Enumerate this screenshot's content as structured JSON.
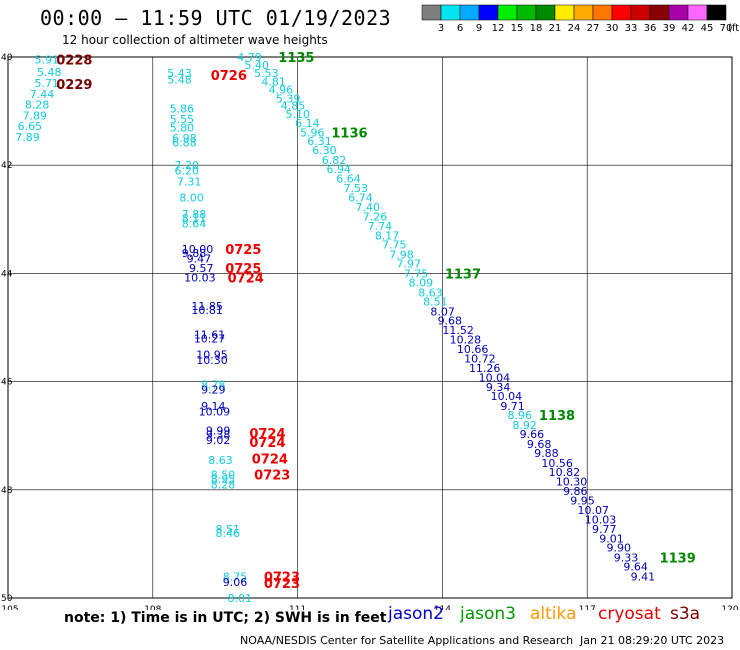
{
  "header": {
    "title": "00:00 – 11:59 UTC 01/19/2023",
    "subtitle": "12 hour collection of altimeter wave heights"
  },
  "colorbar": {
    "unit": "(ft)",
    "entries": [
      {
        "label": "3",
        "color": "#7f7f7f"
      },
      {
        "label": "6",
        "color": "#00e5ee"
      },
      {
        "label": "9",
        "color": "#00aaff"
      },
      {
        "label": "12",
        "color": "#0000ff"
      },
      {
        "label": "15",
        "color": "#00ee00"
      },
      {
        "label": "18",
        "color": "#00bb00"
      },
      {
        "label": "21",
        "color": "#008800"
      },
      {
        "label": "24",
        "color": "#ffee00"
      },
      {
        "label": "27",
        "color": "#ffaa00"
      },
      {
        "label": "30",
        "color": "#ff7700"
      },
      {
        "label": "33",
        "color": "#ff0000"
      },
      {
        "label": "36",
        "color": "#cc0000"
      },
      {
        "label": "39",
        "color": "#880000"
      },
      {
        "label": "42",
        "color": "#aa00aa"
      },
      {
        "label": "45",
        "color": "#ff66ff"
      },
      {
        "label": "70",
        "color": "#000000"
      }
    ]
  },
  "axes": {
    "x_ticks": [
      "105",
      "108",
      "111",
      "114",
      "117",
      "120"
    ],
    "y_ticks": [
      "40",
      "42",
      "44",
      "46",
      "48",
      "50"
    ],
    "lon_range": [
      105,
      120
    ],
    "lat_range": [
      40,
      50
    ]
  },
  "colors": {
    "cyan": "#11ccdd",
    "blue": "#0000bb",
    "green": "#008800",
    "red": "#ee0000",
    "darkred": "#770000"
  },
  "points": [
    {
      "t": "5.91",
      "lon": 105.55,
      "lat": 40.05,
      "c": "cyan"
    },
    {
      "t": "5.48",
      "lon": 105.6,
      "lat": 40.28,
      "c": "cyan"
    },
    {
      "t": "5.71",
      "lon": 105.55,
      "lat": 40.48,
      "c": "cyan"
    },
    {
      "t": "7.44",
      "lon": 105.45,
      "lat": 40.68,
      "c": "cyan"
    },
    {
      "t": "8.28",
      "lon": 105.35,
      "lat": 40.88,
      "c": "cyan"
    },
    {
      "t": "7.89",
      "lon": 105.3,
      "lat": 41.08,
      "c": "cyan"
    },
    {
      "t": "6.65",
      "lon": 105.2,
      "lat": 41.28,
      "c": "cyan"
    },
    {
      "t": "7.89",
      "lon": 105.15,
      "lat": 41.48,
      "c": "cyan"
    },
    {
      "t": "0228",
      "lon": 106.0,
      "lat": 40.05,
      "c": "darkred",
      "big": true
    },
    {
      "t": "0229",
      "lon": 106.0,
      "lat": 40.5,
      "c": "darkred",
      "big": true
    },
    {
      "t": "5.43",
      "lon": 108.3,
      "lat": 40.3,
      "c": "cyan"
    },
    {
      "t": "5.48",
      "lon": 108.3,
      "lat": 40.42,
      "c": "cyan"
    },
    {
      "t": "0726",
      "lon": 109.2,
      "lat": 40.33,
      "c": "red",
      "big": true
    },
    {
      "t": "5.86",
      "lon": 108.35,
      "lat": 40.95,
      "c": "cyan"
    },
    {
      "t": "5.55",
      "lon": 108.35,
      "lat": 41.15,
      "c": "cyan"
    },
    {
      "t": "5.80",
      "lon": 108.35,
      "lat": 41.3,
      "c": "cyan"
    },
    {
      "t": "6.98",
      "lon": 108.4,
      "lat": 41.5,
      "c": "cyan"
    },
    {
      "t": "6.88",
      "lon": 108.4,
      "lat": 41.58,
      "c": "cyan"
    },
    {
      "t": "7.20",
      "lon": 108.45,
      "lat": 42.0,
      "c": "cyan"
    },
    {
      "t": "6.20",
      "lon": 108.45,
      "lat": 42.1,
      "c": "cyan"
    },
    {
      "t": "7.31",
      "lon": 108.5,
      "lat": 42.3,
      "c": "cyan"
    },
    {
      "t": "8.00",
      "lon": 108.55,
      "lat": 42.6,
      "c": "cyan"
    },
    {
      "t": "7.88",
      "lon": 108.6,
      "lat": 42.9,
      "c": "cyan"
    },
    {
      "t": "8.11",
      "lon": 108.6,
      "lat": 42.98,
      "c": "cyan"
    },
    {
      "t": "8.64",
      "lon": 108.6,
      "lat": 43.08,
      "c": "cyan"
    },
    {
      "t": "10.00",
      "lon": 108.6,
      "lat": 43.55,
      "c": "blue"
    },
    {
      "t": "9.88",
      "lon": 108.6,
      "lat": 43.62,
      "c": "blue"
    },
    {
      "t": "9.47",
      "lon": 108.7,
      "lat": 43.72,
      "c": "blue"
    },
    {
      "t": "9.57",
      "lon": 108.75,
      "lat": 43.9,
      "c": "blue"
    },
    {
      "t": "10.03",
      "lon": 108.65,
      "lat": 44.08,
      "c": "blue"
    },
    {
      "t": "0725",
      "lon": 109.5,
      "lat": 43.55,
      "c": "red",
      "big": true
    },
    {
      "t": "0725",
      "lon": 109.5,
      "lat": 43.9,
      "c": "red",
      "big": true
    },
    {
      "t": "0724",
      "lon": 109.55,
      "lat": 44.08,
      "c": "red",
      "big": true
    },
    {
      "t": "11.85",
      "lon": 108.8,
      "lat": 44.6,
      "c": "blue"
    },
    {
      "t": "10.81",
      "lon": 108.8,
      "lat": 44.68,
      "c": "blue"
    },
    {
      "t": "11.61",
      "lon": 108.85,
      "lat": 45.13,
      "c": "blue"
    },
    {
      "t": "10.27",
      "lon": 108.85,
      "lat": 45.2,
      "c": "blue"
    },
    {
      "t": "10.95",
      "lon": 108.9,
      "lat": 45.5,
      "c": "blue"
    },
    {
      "t": "10.30",
      "lon": 108.9,
      "lat": 45.6,
      "c": "blue"
    },
    {
      "t": "8.78",
      "lon": 109.0,
      "lat": 46.05,
      "c": "cyan"
    },
    {
      "t": "9.29",
      "lon": 109.0,
      "lat": 46.15,
      "c": "blue"
    },
    {
      "t": "9.14",
      "lon": 109.0,
      "lat": 46.45,
      "c": "blue"
    },
    {
      "t": "10.09",
      "lon": 108.95,
      "lat": 46.55,
      "c": "blue"
    },
    {
      "t": "9.99",
      "lon": 109.1,
      "lat": 46.9,
      "c": "blue"
    },
    {
      "t": "9.38",
      "lon": 109.1,
      "lat": 46.98,
      "c": "blue"
    },
    {
      "t": "9.02",
      "lon": 109.1,
      "lat": 47.08,
      "c": "blue"
    },
    {
      "t": "0724",
      "lon": 110.0,
      "lat": 46.95,
      "c": "red",
      "big": true
    },
    {
      "t": "0724",
      "lon": 110.0,
      "lat": 47.12,
      "c": "red",
      "big": true
    },
    {
      "t": "8.63",
      "lon": 109.15,
      "lat": 47.45,
      "c": "cyan"
    },
    {
      "t": "0724",
      "lon": 110.05,
      "lat": 47.42,
      "c": "red",
      "big": true
    },
    {
      "t": "8.50",
      "lon": 109.2,
      "lat": 47.72,
      "c": "cyan"
    },
    {
      "t": "8.95",
      "lon": 109.2,
      "lat": 47.8,
      "c": "cyan"
    },
    {
      "t": "8.28",
      "lon": 109.2,
      "lat": 47.9,
      "c": "cyan"
    },
    {
      "t": "0723",
      "lon": 110.1,
      "lat": 47.72,
      "c": "red",
      "big": true
    },
    {
      "t": "8.51",
      "lon": 109.3,
      "lat": 48.72,
      "c": "cyan"
    },
    {
      "t": "8.46",
      "lon": 109.3,
      "lat": 48.8,
      "c": "cyan"
    },
    {
      "t": "8.75",
      "lon": 109.45,
      "lat": 49.6,
      "c": "cyan"
    },
    {
      "t": "9.06",
      "lon": 109.45,
      "lat": 49.7,
      "c": "blue"
    },
    {
      "t": "0723",
      "lon": 110.3,
      "lat": 49.6,
      "c": "red",
      "big": true
    },
    {
      "t": "0723",
      "lon": 110.3,
      "lat": 49.72,
      "c": "red",
      "big": true
    },
    {
      "t": "8.01",
      "lon": 109.55,
      "lat": 50.0,
      "c": "cyan"
    },
    {
      "t": "4.79",
      "lon": 109.75,
      "lat": 40.0,
      "c": "cyan"
    },
    {
      "t": "1135",
      "lon": 110.6,
      "lat": 40.0,
      "c": "green",
      "big": true
    },
    {
      "t": "5.40",
      "lon": 109.9,
      "lat": 40.15,
      "c": "cyan"
    },
    {
      "t": "5.53",
      "lon": 110.1,
      "lat": 40.3,
      "c": "cyan"
    },
    {
      "t": "4.81",
      "lon": 110.25,
      "lat": 40.45,
      "c": "cyan"
    },
    {
      "t": "4.96",
      "lon": 110.4,
      "lat": 40.6,
      "c": "cyan"
    },
    {
      "t": "5.39",
      "lon": 110.55,
      "lat": 40.77,
      "c": "cyan"
    },
    {
      "t": "4.85",
      "lon": 110.65,
      "lat": 40.9,
      "c": "cyan"
    },
    {
      "t": "5.10",
      "lon": 110.75,
      "lat": 41.05,
      "c": "cyan"
    },
    {
      "t": "6.14",
      "lon": 110.95,
      "lat": 41.22,
      "c": "cyan"
    },
    {
      "t": "5.96",
      "lon": 111.05,
      "lat": 41.4,
      "c": "cyan"
    },
    {
      "t": "1136",
      "lon": 111.7,
      "lat": 41.4,
      "c": "green",
      "big": true
    },
    {
      "t": "6.31",
      "lon": 111.2,
      "lat": 41.55,
      "c": "cyan"
    },
    {
      "t": "6.30",
      "lon": 111.3,
      "lat": 41.72,
      "c": "cyan"
    },
    {
      "t": "6.82",
      "lon": 111.5,
      "lat": 41.9,
      "c": "cyan"
    },
    {
      "t": "6.94",
      "lon": 111.6,
      "lat": 42.07,
      "c": "cyan"
    },
    {
      "t": "6.64",
      "lon": 111.8,
      "lat": 42.25,
      "c": "cyan"
    },
    {
      "t": "7.53",
      "lon": 111.95,
      "lat": 42.42,
      "c": "cyan"
    },
    {
      "t": "6.74",
      "lon": 112.05,
      "lat": 42.6,
      "c": "cyan"
    },
    {
      "t": "7.40",
      "lon": 112.2,
      "lat": 42.77,
      "c": "cyan"
    },
    {
      "t": "7.26",
      "lon": 112.35,
      "lat": 42.95,
      "c": "cyan"
    },
    {
      "t": "7.74",
      "lon": 112.45,
      "lat": 43.12,
      "c": "cyan"
    },
    {
      "t": "8.17",
      "lon": 112.6,
      "lat": 43.3,
      "c": "cyan"
    },
    {
      "t": "7.75",
      "lon": 112.75,
      "lat": 43.47,
      "c": "cyan"
    },
    {
      "t": "7.98",
      "lon": 112.9,
      "lat": 43.65,
      "c": "cyan"
    },
    {
      "t": "7.97",
      "lon": 113.05,
      "lat": 43.82,
      "c": "cyan"
    },
    {
      "t": "7.75",
      "lon": 113.2,
      "lat": 44.0,
      "c": "cyan"
    },
    {
      "t": "1137",
      "lon": 114.05,
      "lat": 44.0,
      "c": "green",
      "big": true
    },
    {
      "t": "8.09",
      "lon": 113.3,
      "lat": 44.17,
      "c": "cyan"
    },
    {
      "t": "8.63",
      "lon": 113.5,
      "lat": 44.35,
      "c": "cyan"
    },
    {
      "t": "8.51",
      "lon": 113.6,
      "lat": 44.52,
      "c": "cyan"
    },
    {
      "t": "8.07",
      "lon": 113.75,
      "lat": 44.7,
      "c": "blue"
    },
    {
      "t": "9.68",
      "lon": 113.9,
      "lat": 44.87,
      "c": "blue"
    },
    {
      "t": "11.52",
      "lon": 114.0,
      "lat": 45.05,
      "c": "blue"
    },
    {
      "t": "10.28",
      "lon": 114.15,
      "lat": 45.22,
      "c": "blue"
    },
    {
      "t": "10.66",
      "lon": 114.3,
      "lat": 45.4,
      "c": "blue"
    },
    {
      "t": "10.72",
      "lon": 114.45,
      "lat": 45.57,
      "c": "blue"
    },
    {
      "t": "11.26",
      "lon": 114.55,
      "lat": 45.75,
      "c": "blue"
    },
    {
      "t": "10.04",
      "lon": 114.75,
      "lat": 45.92,
      "c": "blue"
    },
    {
      "t": "9.34",
      "lon": 114.9,
      "lat": 46.1,
      "c": "blue"
    },
    {
      "t": "10.04",
      "lon": 115.0,
      "lat": 46.27,
      "c": "blue"
    },
    {
      "t": "9.71",
      "lon": 115.2,
      "lat": 46.45,
      "c": "blue"
    },
    {
      "t": "8.96",
      "lon": 115.35,
      "lat": 46.62,
      "c": "cyan"
    },
    {
      "t": "1138",
      "lon": 116.0,
      "lat": 46.62,
      "c": "green",
      "big": true
    },
    {
      "t": "8.92",
      "lon": 115.45,
      "lat": 46.8,
      "c": "cyan"
    },
    {
      "t": "9.66",
      "lon": 115.6,
      "lat": 46.97,
      "c": "blue"
    },
    {
      "t": "9.68",
      "lon": 115.75,
      "lat": 47.15,
      "c": "blue"
    },
    {
      "t": "9.88",
      "lon": 115.9,
      "lat": 47.32,
      "c": "blue"
    },
    {
      "t": "10.56",
      "lon": 116.05,
      "lat": 47.5,
      "c": "blue"
    },
    {
      "t": "10.82",
      "lon": 116.2,
      "lat": 47.67,
      "c": "blue"
    },
    {
      "t": "10.30",
      "lon": 116.35,
      "lat": 47.85,
      "c": "blue"
    },
    {
      "t": "9.86",
      "lon": 116.5,
      "lat": 48.02,
      "c": "blue"
    },
    {
      "t": "9.95",
      "lon": 116.65,
      "lat": 48.2,
      "c": "blue"
    },
    {
      "t": "10.07",
      "lon": 116.8,
      "lat": 48.37,
      "c": "blue"
    },
    {
      "t": "10.03",
      "lon": 116.95,
      "lat": 48.55,
      "c": "blue"
    },
    {
      "t": "9.77",
      "lon": 117.1,
      "lat": 48.72,
      "c": "blue"
    },
    {
      "t": "9.01",
      "lon": 117.25,
      "lat": 48.9,
      "c": "blue"
    },
    {
      "t": "9.90",
      "lon": 117.4,
      "lat": 49.07,
      "c": "blue"
    },
    {
      "t": "9.33",
      "lon": 117.55,
      "lat": 49.25,
      "c": "blue"
    },
    {
      "t": "1139",
      "lon": 118.5,
      "lat": 49.25,
      "c": "green",
      "big": true
    },
    {
      "t": "9.64",
      "lon": 117.75,
      "lat": 49.42,
      "c": "blue"
    },
    {
      "t": "9.41",
      "lon": 117.9,
      "lat": 49.6,
      "c": "blue"
    }
  ],
  "note": "note:  1) Time is in UTC; 2) SWH is in feet",
  "legend": [
    {
      "label": "jason2",
      "color": "#0000cc"
    },
    {
      "label": "jason3",
      "color": "#009900"
    },
    {
      "label": "altika",
      "color": "#ff9900"
    },
    {
      "label": "cryosat",
      "color": "#ee0000"
    },
    {
      "label": "s3a",
      "color": "#770000"
    }
  ],
  "footer": {
    "credit": "NOAA/NESDIS Center for Satellite Applications and Research",
    "timestamp": "Jan 21 08:29:20 UTC 2023"
  }
}
